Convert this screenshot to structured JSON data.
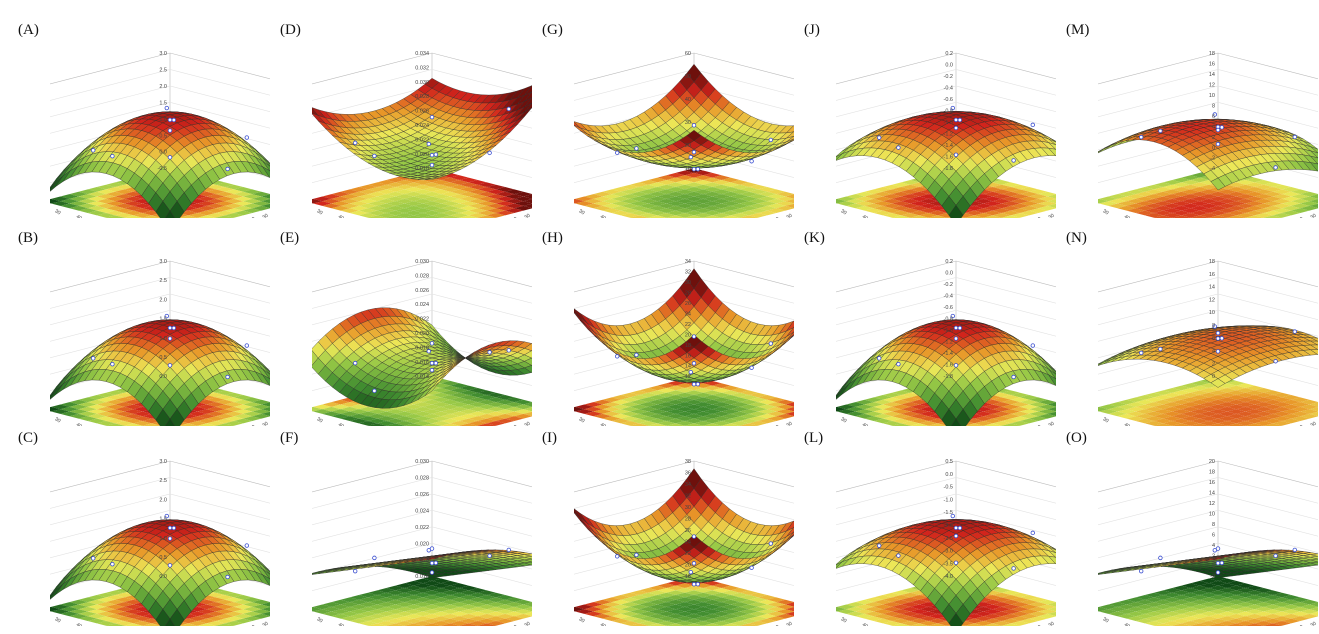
{
  "figure": {
    "panel_labels": [
      "(A)",
      "(B)",
      "(C)",
      "(D)",
      "(E)",
      "(F)",
      "(G)",
      "(H)",
      "(I)",
      "(J)",
      "(K)",
      "(L)",
      "(M)",
      "(N)",
      "(O)"
    ]
  },
  "chart_data": [
    {
      "panel": "(A)",
      "type": "surface",
      "shape": "dome",
      "colormap": "red-yellow-green",
      "z_ticks": [
        "-0.5",
        "0.0",
        "0.5",
        "1.0",
        "1.5",
        "2.0",
        "2.5",
        "3.0"
      ],
      "x_ticks": [
        "0",
        "10",
        "20",
        "30",
        "40",
        "50",
        "60",
        "70",
        "80",
        "90",
        "100"
      ],
      "y_ticks": [
        "20",
        "30",
        "40",
        "50",
        "60",
        "70",
        "80"
      ]
    },
    {
      "panel": "(B)",
      "type": "surface",
      "shape": "dome",
      "colormap": "red-yellow-green",
      "z_ticks": [
        "0.0",
        "0.5",
        "1.0",
        "1.5",
        "2.0",
        "2.5",
        "3.0"
      ],
      "x_ticks": [
        "0",
        "10",
        "20",
        "30",
        "40",
        "50",
        "60",
        "70",
        "80",
        "90",
        "100"
      ],
      "y_ticks": [
        "20",
        "30",
        "40",
        "50",
        "60",
        "70",
        "80"
      ]
    },
    {
      "panel": "(C)",
      "type": "surface",
      "shape": "dome",
      "colormap": "red-yellow-green",
      "z_ticks": [
        "0.0",
        "0.5",
        "1.0",
        "1.5",
        "2.0",
        "2.5",
        "3.0"
      ],
      "x_ticks": [
        "0",
        "10",
        "20",
        "30",
        "40",
        "50",
        "60",
        "70",
        "80",
        "90",
        "100"
      ],
      "y_ticks": [
        "20",
        "30",
        "40",
        "50",
        "60",
        "70",
        "80"
      ]
    },
    {
      "panel": "(D)",
      "type": "surface",
      "shape": "saddle-down",
      "colormap": "red-yellow-green",
      "z_ticks": [
        "0.018",
        "0.020",
        "0.022",
        "0.024",
        "0.026",
        "0.028",
        "0.030",
        "0.032",
        "0.034"
      ],
      "x_ticks": [
        "0",
        "10",
        "20",
        "30",
        "40",
        "50",
        "60",
        "70",
        "80",
        "90",
        "100"
      ],
      "y_ticks": [
        "20",
        "30",
        "40",
        "50",
        "60",
        "70",
        "80"
      ]
    },
    {
      "panel": "(E)",
      "type": "surface",
      "shape": "saddle",
      "colormap": "red-yellow-green",
      "z_ticks": [
        "0.014",
        "0.016",
        "0.018",
        "0.020",
        "0.022",
        "0.024",
        "0.026",
        "0.028",
        "0.030"
      ],
      "x_ticks": [
        "0",
        "10",
        "20",
        "30",
        "40",
        "50",
        "60",
        "70",
        "80",
        "90",
        "100"
      ],
      "y_ticks": [
        "20",
        "30",
        "40",
        "50",
        "60",
        "70",
        "80"
      ]
    },
    {
      "panel": "(F)",
      "type": "surface",
      "shape": "tilt-up",
      "colormap": "red-yellow-green",
      "z_ticks": [
        "0.016",
        "0.018",
        "0.020",
        "0.022",
        "0.024",
        "0.026",
        "0.028",
        "0.030"
      ],
      "x_ticks": [
        "0",
        "10",
        "20",
        "30",
        "40",
        "50",
        "60",
        "70",
        "80",
        "90",
        "100"
      ],
      "y_ticks": [
        "20",
        "30",
        "40",
        "50",
        "60",
        "70",
        "80"
      ]
    },
    {
      "panel": "(G)",
      "type": "surface",
      "shape": "bowl-flat",
      "colormap": "red-yellow-green",
      "z_ticks": [
        "10",
        "20",
        "30",
        "40",
        "50",
        "60"
      ],
      "x_ticks": [
        "0",
        "10",
        "20",
        "30",
        "40",
        "50",
        "60",
        "70",
        "80",
        "90",
        "100"
      ],
      "y_ticks": [
        "20",
        "30",
        "40",
        "50",
        "60",
        "70",
        "80"
      ]
    },
    {
      "panel": "(H)",
      "type": "surface",
      "shape": "bowl",
      "colormap": "red-yellow-green",
      "z_ticks": [
        "12",
        "14",
        "16",
        "18",
        "20",
        "22",
        "24",
        "26",
        "28",
        "30",
        "32",
        "34"
      ],
      "x_ticks": [
        "0",
        "10",
        "20",
        "30",
        "40",
        "50",
        "60",
        "70",
        "80",
        "90",
        "100"
      ],
      "y_ticks": [
        "20",
        "30",
        "40",
        "50",
        "60",
        "70",
        "80"
      ]
    },
    {
      "panel": "(I)",
      "type": "surface",
      "shape": "bowl",
      "colormap": "red-yellow-green",
      "z_ticks": [
        "18",
        "20",
        "22",
        "24",
        "26",
        "28",
        "30",
        "32",
        "34",
        "36",
        "38"
      ],
      "x_ticks": [
        "0",
        "10",
        "20",
        "30",
        "40",
        "50",
        "60",
        "70",
        "80",
        "90",
        "100"
      ],
      "y_ticks": [
        "20",
        "30",
        "40",
        "50",
        "60",
        "70",
        "80"
      ]
    },
    {
      "panel": "(J)",
      "type": "surface",
      "shape": "dome-flat",
      "colormap": "red-yellow-green",
      "z_ticks": [
        "-1.8",
        "-1.6",
        "-1.4",
        "-1.2",
        "-1.0",
        "-0.8",
        "-0.6",
        "-0.4",
        "-0.2",
        "0.0",
        "0.2"
      ],
      "x_ticks": [
        "0",
        "10",
        "20",
        "30",
        "40",
        "50",
        "60",
        "70",
        "80",
        "90",
        "100"
      ],
      "y_ticks": [
        "20",
        "30",
        "40",
        "50",
        "60",
        "70",
        "80"
      ]
    },
    {
      "panel": "(K)",
      "type": "surface",
      "shape": "dome",
      "colormap": "red-yellow-green",
      "z_ticks": [
        "-1.8",
        "-1.6",
        "-1.4",
        "-1.2",
        "-1.0",
        "-0.8",
        "-0.6",
        "-0.4",
        "-0.2",
        "0.0",
        "0.2"
      ],
      "x_ticks": [
        "0",
        "10",
        "20",
        "30",
        "40",
        "50",
        "60",
        "70",
        "80",
        "90",
        "100"
      ],
      "y_ticks": [
        "20",
        "30",
        "40",
        "50",
        "60",
        "70",
        "80"
      ]
    },
    {
      "panel": "(L)",
      "type": "surface",
      "shape": "dome-flat",
      "colormap": "red-yellow-green",
      "z_ticks": [
        "-4.0",
        "-3.5",
        "-3.0",
        "-2.5",
        "-2.0",
        "-1.5",
        "-1.0",
        "-0.5",
        "0.0",
        "0.5"
      ],
      "x_ticks": [
        "0",
        "10",
        "20",
        "30",
        "40",
        "50",
        "60",
        "70",
        "80",
        "90",
        "100"
      ],
      "y_ticks": [
        "20",
        "30",
        "40",
        "50",
        "60",
        "70",
        "80"
      ]
    },
    {
      "panel": "(M)",
      "type": "surface",
      "shape": "ridge",
      "colormap": "red-yellow-green",
      "z_ticks": [
        "-4",
        "-2",
        "0",
        "2",
        "4",
        "6",
        "8",
        "10",
        "12",
        "14",
        "16",
        "18"
      ],
      "x_ticks": [
        "0",
        "10",
        "20",
        "30",
        "40",
        "50",
        "60",
        "70",
        "80",
        "90",
        "100"
      ],
      "y_ticks": [
        "20",
        "30",
        "40",
        "50",
        "60",
        "70",
        "80"
      ]
    },
    {
      "panel": "(N)",
      "type": "surface",
      "shape": "plateau",
      "colormap": "red-yellow-green",
      "z_ticks": [
        "0",
        "2",
        "4",
        "6",
        "8",
        "10",
        "12",
        "14",
        "16",
        "18"
      ],
      "x_ticks": [
        "0",
        "10",
        "20",
        "30",
        "40",
        "50",
        "60",
        "70",
        "80",
        "90",
        "100"
      ],
      "y_ticks": [
        "20",
        "30",
        "40",
        "50",
        "60",
        "70",
        "80"
      ]
    },
    {
      "panel": "(O)",
      "type": "surface",
      "shape": "tilt-up",
      "colormap": "red-yellow-green",
      "z_ticks": [
        "-2",
        "0",
        "2",
        "4",
        "6",
        "8",
        "10",
        "12",
        "14",
        "16",
        "18",
        "20"
      ],
      "x_ticks": [
        "0",
        "10",
        "20",
        "30",
        "40",
        "50",
        "60",
        "70",
        "80",
        "90",
        "100"
      ],
      "y_ticks": [
        "20",
        "30",
        "40",
        "50",
        "60",
        "70",
        "80"
      ]
    }
  ]
}
